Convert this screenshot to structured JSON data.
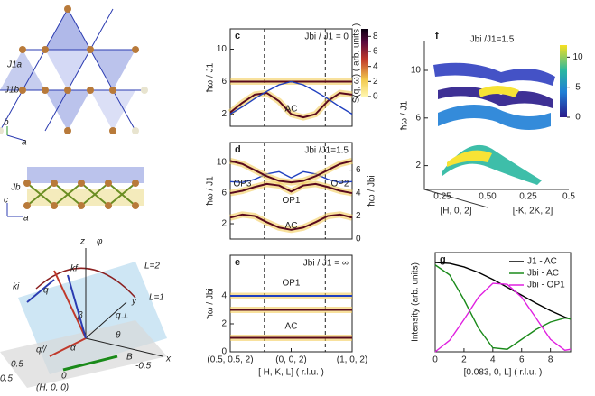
{
  "diagram": {
    "labels": [
      "J1a",
      "J1b",
      "a",
      "b",
      "Jb",
      "c",
      "a",
      "kf",
      "ki",
      "q",
      "q⊥",
      "q//",
      "z",
      "y",
      "x",
      "φ",
      "θ",
      "β",
      "α",
      "B",
      "L=2",
      "L=1",
      "0.5",
      "0",
      "-0.5",
      "(H, 0, 0)",
      "0.5"
    ]
  },
  "chart_data": [
    {
      "type": "band",
      "panel_label": "c",
      "annotation": "Jbi / J1 = 0",
      "ylabel": "ħω / J1",
      "xlim": [
        0,
        1
      ],
      "ylim": [
        0.5,
        12.5
      ],
      "yticks": [
        2,
        6,
        10
      ],
      "dashed_x": [
        0.28,
        0.78
      ],
      "x": [
        0,
        0.1,
        0.2,
        0.3,
        0.4,
        0.5,
        0.6,
        0.7,
        0.8,
        0.9,
        1
      ],
      "series": [
        {
          "color": "#5a0a1e",
          "glow": "#f2c94c",
          "values": [
            6,
            6,
            6,
            6,
            6,
            6,
            6,
            6,
            6,
            6,
            6
          ]
        },
        {
          "color": "#5a0a1e",
          "glow": "#f2c94c",
          "values": [
            2.2,
            3.4,
            4.4,
            4.6,
            3.6,
            2.0,
            1.6,
            2.0,
            3.6,
            4.6,
            4.4
          ]
        },
        {
          "color": "#1f3fbf",
          "values": [
            2.0,
            2.9,
            3.9,
            4.8,
            5.6,
            6.0,
            5.6,
            4.8,
            3.9,
            2.9,
            2.0
          ]
        }
      ],
      "annotations": [
        "AC"
      ],
      "colorbar": {
        "label": "S(q, ω) ( arb. units )",
        "lim": [
          0,
          9
        ],
        "ticks": [
          0,
          2,
          4,
          6,
          8
        ]
      }
    },
    {
      "type": "band",
      "panel_label": "d",
      "annotation": "Jbi /J1=1.5",
      "ylabel": "ħω / J1",
      "y2label": "ħω / Jbi",
      "xlim": [
        0,
        1
      ],
      "ylim": [
        0,
        12.6
      ],
      "yticks": [
        2,
        6,
        10
      ],
      "y2lim": [
        0,
        8.4
      ],
      "y2ticks": [
        0,
        2,
        4,
        6
      ],
      "dashed_x": [
        0.28,
        0.78
      ],
      "x": [
        0,
        0.1,
        0.2,
        0.3,
        0.4,
        0.5,
        0.6,
        0.7,
        0.8,
        0.9,
        1
      ],
      "series": [
        {
          "color": "#5a0a1e",
          "glow": "#f2c94c",
          "values": [
            2.8,
            3.2,
            3.0,
            2.2,
            1.5,
            1.2,
            1.5,
            2.2,
            3.0,
            3.2,
            2.8
          ]
        },
        {
          "color": "#5a0a1e",
          "glow": "#f2c94c",
          "values": [
            6,
            6.3,
            6.8,
            7.2,
            7.0,
            6.2,
            7.0,
            7.2,
            6.8,
            6.3,
            6
          ]
        },
        {
          "color": "#1f3fbf",
          "values": [
            7.5,
            7.4,
            7.8,
            8.5,
            8.8,
            8.0,
            8.8,
            8.5,
            7.8,
            7.4,
            7.5
          ]
        },
        {
          "color": "#5a0a1e",
          "glow": "#f2c94c",
          "values": [
            10.2,
            9.8,
            9,
            8.2,
            7.6,
            7.4,
            7.6,
            8.2,
            9,
            9.8,
            10.2
          ]
        }
      ],
      "annotations": [
        "OP3",
        "OP1",
        "OP2",
        "AC"
      ]
    },
    {
      "type": "band",
      "panel_label": "e",
      "annotation": "Jbi / J1 = ∞",
      "ylabel": "ħω / Jbi",
      "xlim": [
        0,
        1
      ],
      "ylim": [
        0,
        6.9
      ],
      "yticks": [
        0,
        2,
        4
      ],
      "dashed_x": [
        0.28,
        0.78
      ],
      "xticks": [
        {
          "value": 0,
          "label": "(0.5, 0.5, 2)"
        },
        {
          "value": 0.5,
          "label": "(0, 0, 2)"
        },
        {
          "value": 1,
          "label": "(1, 0, 2)"
        }
      ],
      "xlabel": "[ H, K, L] ( r.l.u. )",
      "x": [
        0,
        0.1,
        0.2,
        0.3,
        0.4,
        0.5,
        0.6,
        0.7,
        0.8,
        0.9,
        1
      ],
      "series": [
        {
          "color": "#1f3fbf",
          "glow": "#f2c94c",
          "values": [
            4,
            4,
            4,
            4,
            4,
            4,
            4,
            4,
            4,
            4,
            4
          ]
        },
        {
          "color": "#5a0a1e",
          "glow": "#f2c94c",
          "values": [
            3,
            3,
            3,
            3,
            3,
            3,
            3,
            3,
            3,
            3,
            3
          ]
        },
        {
          "color": "#5a0a1e",
          "glow": "#f2c94c",
          "values": [
            1,
            1,
            1,
            1,
            1,
            1,
            1,
            1,
            1,
            1,
            1
          ]
        }
      ],
      "annotations": [
        "OP1",
        "AC"
      ]
    },
    {
      "type": "surface",
      "panel_label": "f",
      "annotation": "Jbi /J1=1.5",
      "ylabel": "ħω / J1",
      "ylim": [
        0,
        12.5
      ],
      "yticks": [
        2,
        6,
        10
      ],
      "xticks": [
        0.25,
        {
          "value": 0.5,
          "label": "0.50"
        }
      ],
      "xlabel": "[H, 0, 2]",
      "x2ticks": [
        0.25,
        0.5
      ],
      "x2label": "[-K, 2K, 2]",
      "colorbar": {
        "lim": [
          0,
          12
        ],
        "ticks": [
          0,
          5,
          10
        ]
      }
    },
    {
      "type": "line",
      "panel_label": "g",
      "ylabel": "Intensity (arb. units)",
      "xlabel": "[0.083, 0, L] ( r.l.u. )",
      "xlim": [
        0,
        9.4
      ],
      "xticks": [
        0,
        2,
        4,
        6,
        8
      ],
      "ylim": [
        0,
        20
      ],
      "x": [
        0,
        1,
        2,
        3,
        4,
        5,
        6,
        7,
        8,
        9,
        9.4
      ],
      "series": [
        {
          "name": "J1 - AC",
          "color": "#000000",
          "values": [
            18,
            17.8,
            17.1,
            16,
            14.6,
            13,
            11.4,
            9.8,
            8.3,
            7,
            6.6
          ]
        },
        {
          "name": "Jbi - AC",
          "color": "#1a8a1a",
          "values": [
            17.5,
            15.5,
            10.5,
            4.8,
            0.8,
            0.5,
            2.5,
            4.5,
            6,
            6.8,
            6.6
          ]
        },
        {
          "name": "Jbi - OP1",
          "color": "#e020e0",
          "values": [
            0,
            2.3,
            6.5,
            11,
            13.8,
            13.6,
            11,
            6.8,
            2.5,
            0.3,
            0.5
          ]
        }
      ]
    }
  ]
}
